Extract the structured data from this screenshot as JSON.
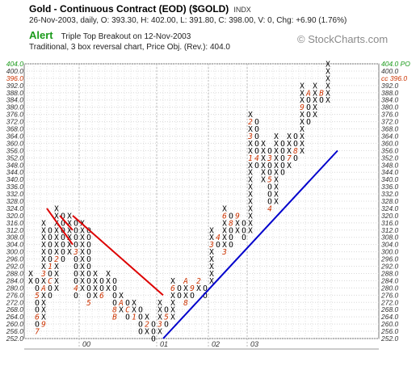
{
  "header": {
    "title": "Gold - Continuous Contract (EOD) ($GOLD)",
    "exchange": "INDX",
    "quote_line": "26-Nov-2003, daily, O: 393.30, H: 402.00, L: 391.80, C: 398.00, V: 0, Chg: +6.90 (1.76%)",
    "alert_label": "Alert",
    "alert_text": "Triple Top Breakout on 12-Nov-2003",
    "method_line": "Traditional, 3 box reversal chart, Price Obj. (Rev.): 404.0",
    "brand": "© StockCharts.com"
  },
  "colors": {
    "x_mark": "#000000",
    "o_mark": "#000000",
    "month_marker": "#cc3300",
    "resistance_line": "#dd0000",
    "support_line": "#0000cc",
    "alert": "#1a9a1a",
    "highlight_label": "#cc3300"
  },
  "chart_data": {
    "type": "point-and-figure",
    "box_size": 4,
    "reversal_boxes": 3,
    "ylim": [
      252,
      404
    ],
    "y_ticks": [
      252,
      256,
      260,
      264,
      268,
      272,
      276,
      280,
      284,
      288,
      292,
      296,
      300,
      304,
      308,
      312,
      316,
      320,
      324,
      328,
      332,
      336,
      340,
      344,
      348,
      352,
      356,
      360,
      364,
      368,
      372,
      376,
      380,
      384,
      388,
      392,
      396,
      400,
      404
    ],
    "left_highlight_labels": [
      "404.0",
      "396.0"
    ],
    "right_highlight_labels": [
      "404.0 PO",
      "cc 396.0"
    ],
    "x_axis_labels": [
      "00",
      "01",
      "02",
      "03"
    ],
    "columns": [
      {
        "type": "X",
        "low": 284,
        "high": 288
      },
      {
        "type": "O",
        "low": 256,
        "high": 284,
        "markers": [
          {
            "price": 276,
            "label": "5"
          },
          {
            "price": 264,
            "label": "6"
          },
          {
            "price": 256,
            "label": "7"
          }
        ]
      },
      {
        "type": "X",
        "low": 260,
        "high": 316,
        "markers": [
          {
            "price": 260,
            "label": "9"
          },
          {
            "price": 280,
            "label": "A"
          },
          {
            "price": 288,
            "label": "3"
          }
        ]
      },
      {
        "type": "O",
        "low": 276,
        "high": 312,
        "markers": [
          {
            "price": 284,
            "label": "C"
          },
          {
            "price": 292,
            "label": "1"
          }
        ]
      },
      {
        "type": "X",
        "low": 280,
        "high": 324,
        "markers": [
          {
            "price": 296,
            "label": "2"
          }
        ]
      },
      {
        "type": "O",
        "low": 296,
        "high": 320
      },
      {
        "type": "X",
        "low": 300,
        "high": 320
      },
      {
        "type": "O",
        "low": 276,
        "high": 316,
        "markers": [
          {
            "price": 300,
            "label": "3"
          },
          {
            "price": 280,
            "label": "4"
          }
        ]
      },
      {
        "type": "X",
        "low": 280,
        "high": 316
      },
      {
        "type": "O",
        "low": 272,
        "high": 312,
        "markers": [
          {
            "price": 272,
            "label": "5"
          }
        ]
      },
      {
        "type": "X",
        "low": 276,
        "high": 288
      },
      {
        "type": "O",
        "low": 276,
        "high": 284,
        "markers": [
          {
            "price": 276,
            "label": "6"
          }
        ]
      },
      {
        "type": "X",
        "low": 280,
        "high": 288
      },
      {
        "type": "O",
        "low": 264,
        "high": 284,
        "markers": [
          {
            "price": 268,
            "label": "8"
          },
          {
            "price": 264,
            "label": "B"
          }
        ]
      },
      {
        "type": "X",
        "low": 268,
        "high": 276,
        "markers": [
          {
            "price": 272,
            "label": "A"
          }
        ]
      },
      {
        "type": "O",
        "low": 264,
        "high": 272,
        "markers": [
          {
            "price": 268,
            "label": "C"
          }
        ]
      },
      {
        "type": "X",
        "low": 264,
        "high": 272,
        "markers": [
          {
            "price": 264,
            "label": "1"
          }
        ]
      },
      {
        "type": "O",
        "low": 256,
        "high": 268
      },
      {
        "type": "X",
        "low": 256,
        "high": 264,
        "markers": [
          {
            "price": 260,
            "label": "2"
          }
        ]
      },
      {
        "type": "O",
        "low": 252,
        "high": 260
      },
      {
        "type": "X",
        "low": 256,
        "high": 272,
        "markers": [
          {
            "price": 260,
            "label": "3"
          }
        ]
      },
      {
        "type": "O",
        "low": 260,
        "high": 268,
        "markers": [
          {
            "price": 264,
            "label": "5"
          }
        ]
      },
      {
        "type": "X",
        "low": 264,
        "high": 284,
        "markers": [
          {
            "price": 280,
            "label": "6"
          }
        ]
      },
      {
        "type": "O",
        "low": 276,
        "high": 280
      },
      {
        "type": "X",
        "low": 272,
        "high": 284,
        "markers": [
          {
            "price": 284,
            "label": "A"
          },
          {
            "price": 272,
            "label": "8"
          }
        ]
      },
      {
        "type": "O",
        "low": 276,
        "high": 280,
        "markers": [
          {
            "price": 280,
            "label": "9"
          }
        ]
      },
      {
        "type": "X",
        "low": 280,
        "high": 284,
        "markers": [
          {
            "price": 284,
            "label": "2"
          }
        ]
      },
      {
        "type": "O",
        "low": 276,
        "high": 280
      },
      {
        "type": "X",
        "low": 284,
        "high": 312,
        "markers": [
          {
            "price": 304,
            "label": "3"
          }
        ]
      },
      {
        "type": "O",
        "low": 304,
        "high": 308,
        "markers": [
          {
            "price": 308,
            "label": "4"
          }
        ]
      },
      {
        "type": "X",
        "low": 300,
        "high": 324,
        "markers": [
          {
            "price": 300,
            "label": "3"
          },
          {
            "price": 320,
            "label": "6"
          }
        ]
      },
      {
        "type": "O",
        "low": 304,
        "high": 320,
        "markers": [
          {
            "price": 316,
            "label": "8"
          }
        ]
      },
      {
        "type": "X",
        "low": 312,
        "high": 320,
        "markers": [
          {
            "price": 320,
            "label": "9"
          }
        ]
      },
      {
        "type": "O",
        "low": 308,
        "high": 316
      },
      {
        "type": "X",
        "low": 312,
        "high": 376,
        "markers": [
          {
            "price": 352,
            "label": "1"
          },
          {
            "price": 372,
            "label": "2"
          },
          {
            "price": 364,
            "label": "3"
          }
        ]
      },
      {
        "type": "O",
        "low": 348,
        "high": 372,
        "markers": [
          {
            "price": 352,
            "label": "4"
          }
        ]
      },
      {
        "type": "X",
        "low": 340,
        "high": 360
      },
      {
        "type": "O",
        "low": 324,
        "high": 356,
        "markers": [
          {
            "price": 352,
            "label": "3"
          },
          {
            "price": 340,
            "label": "5"
          },
          {
            "price": 324,
            "label": "4"
          }
        ]
      },
      {
        "type": "X",
        "low": 328,
        "high": 364
      },
      {
        "type": "O",
        "low": 344,
        "high": 360
      },
      {
        "type": "X",
        "low": 348,
        "high": 364,
        "markers": [
          {
            "price": 352,
            "label": "7"
          }
        ]
      },
      {
        "type": "O",
        "low": 352,
        "high": 364,
        "markers": [
          {
            "price": 356,
            "label": "8"
          }
        ]
      },
      {
        "type": "X",
        "low": 356,
        "high": 392,
        "markers": [
          {
            "price": 380,
            "label": "9"
          }
        ]
      },
      {
        "type": "O",
        "low": 372,
        "high": 388,
        "markers": [
          {
            "price": 388,
            "label": "A"
          }
        ]
      },
      {
        "type": "X",
        "low": 376,
        "high": 392
      },
      {
        "type": "O",
        "low": 384,
        "high": 388,
        "markers": [
          {
            "price": 388,
            "label": "B"
          }
        ]
      },
      {
        "type": "X",
        "low": 384,
        "high": 404
      }
    ],
    "trendlines": [
      {
        "kind": "bearish-resistance",
        "start_col": 3,
        "start_price": 324,
        "end_col": 7,
        "end_price": 304
      },
      {
        "kind": "bearish-resistance",
        "start_col": 5,
        "start_price": 320,
        "end_col": 7,
        "end_price": 312
      },
      {
        "kind": "bearish-resistance",
        "start_col": 7,
        "start_price": 320,
        "end_col": 21,
        "end_price": 276
      },
      {
        "kind": "bullish-support",
        "start_col": 21,
        "start_price": 252,
        "end_col": 48,
        "end_price": 356
      }
    ]
  }
}
